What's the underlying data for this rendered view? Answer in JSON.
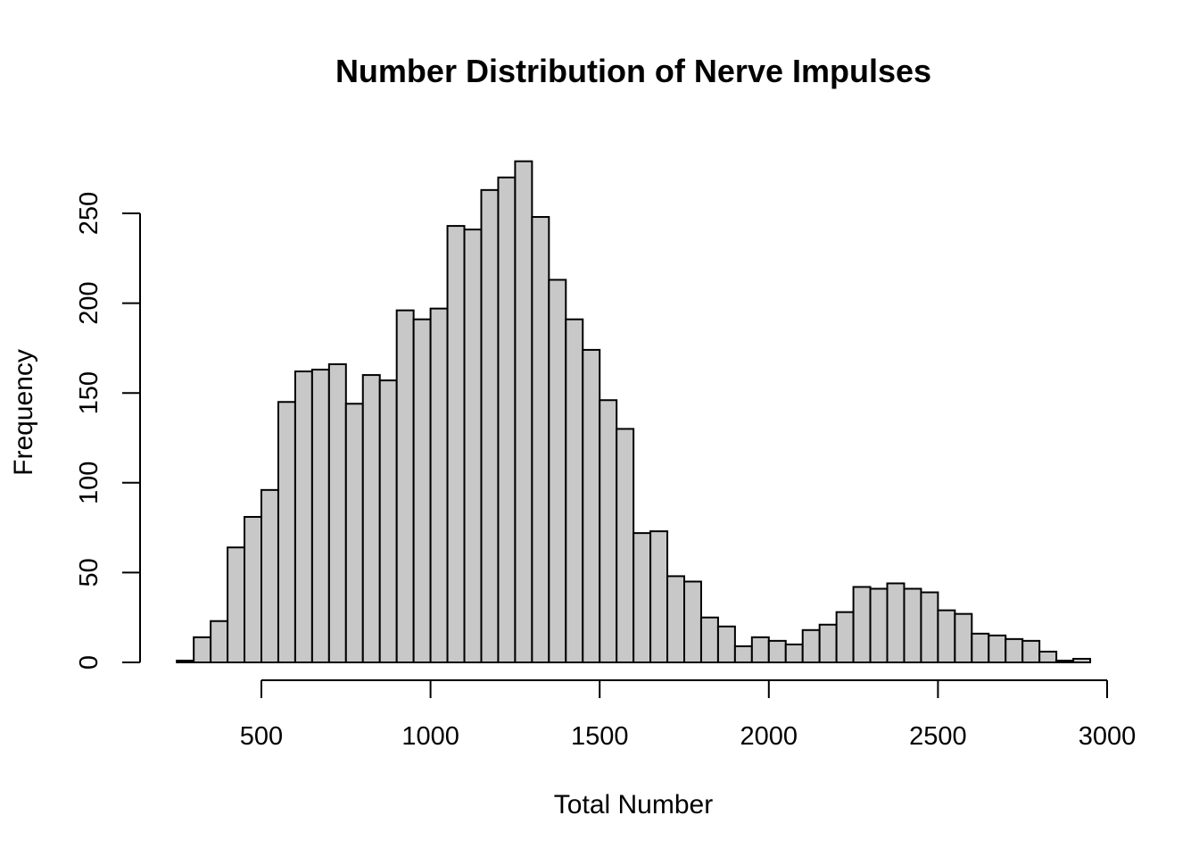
{
  "chart_data": {
    "type": "bar",
    "title": "Number Distribution of Nerve Impulses",
    "xlabel": "Total Number",
    "ylabel": "Frequency",
    "bin_width": 50,
    "bin_edges": [
      250,
      300,
      350,
      400,
      450,
      500,
      550,
      600,
      650,
      700,
      750,
      800,
      850,
      900,
      950,
      1000,
      1050,
      1100,
      1150,
      1200,
      1250,
      1300,
      1350,
      1400,
      1450,
      1500,
      1550,
      1600,
      1650,
      1700,
      1750,
      1800,
      1850,
      1900,
      1950,
      2000,
      2050,
      2100,
      2150,
      2200,
      2250,
      2300,
      2350,
      2400,
      2450,
      2500,
      2550,
      2600,
      2650,
      2700,
      2750,
      2800,
      2850,
      2900,
      2950
    ],
    "values": [
      1,
      14,
      23,
      64,
      81,
      96,
      145,
      162,
      163,
      166,
      144,
      160,
      157,
      196,
      191,
      197,
      243,
      241,
      263,
      270,
      279,
      248,
      213,
      191,
      174,
      146,
      130,
      72,
      73,
      48,
      45,
      25,
      20,
      9,
      14,
      12,
      10,
      18,
      21,
      28,
      42,
      41,
      44,
      41,
      39,
      29,
      27,
      16,
      15,
      13,
      12,
      6,
      1,
      2
    ],
    "xlim": [
      250,
      3000
    ],
    "ylim": [
      0,
      280
    ],
    "x_ticks": [
      500,
      1000,
      1500,
      2000,
      2500,
      3000
    ],
    "x_tick_labels": [
      "500",
      "1000",
      "1500",
      "2000",
      "2500",
      "3000"
    ],
    "y_ticks": [
      0,
      50,
      100,
      150,
      200,
      250
    ],
    "y_tick_labels": [
      "0",
      "50",
      "100",
      "150",
      "200",
      "250"
    ],
    "bar_fill": "#c8c8c8",
    "bar_stroke": "#000000",
    "grid": false,
    "legend": "none"
  }
}
